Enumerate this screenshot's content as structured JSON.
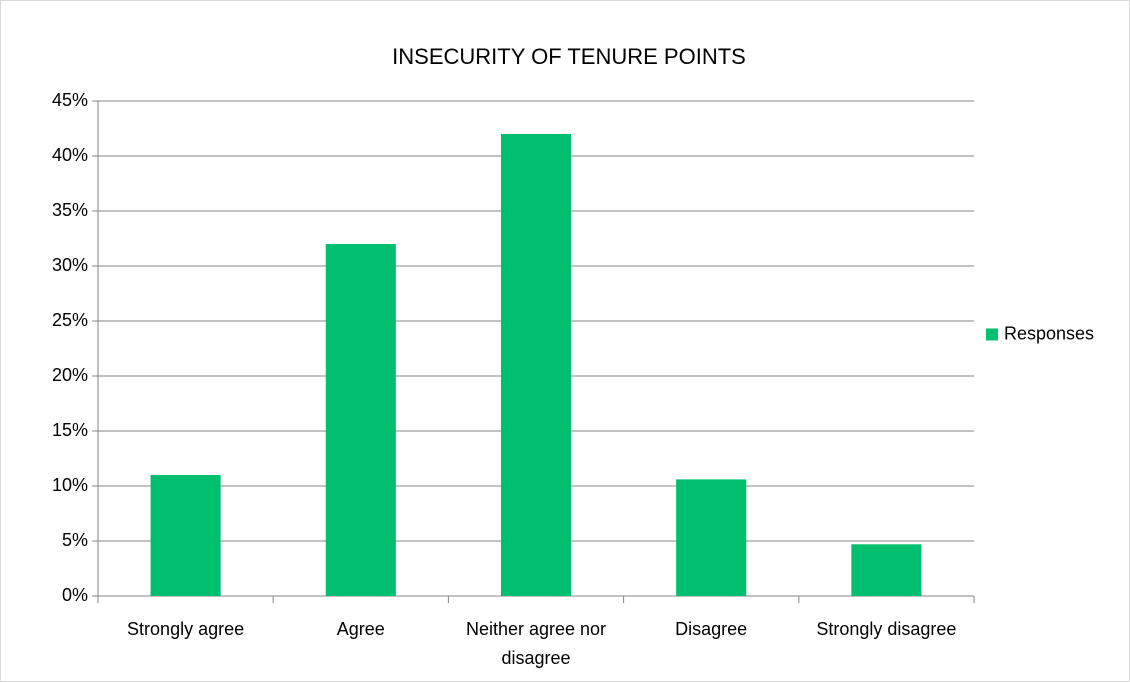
{
  "chart_data": {
    "type": "bar",
    "title": "INSECURITY OF TENURE POINTS",
    "categories": [
      "Strongly agree",
      "Agree",
      "Neither agree nor disagree",
      "Disagree",
      "Strongly disagree"
    ],
    "series": [
      {
        "name": "Responses",
        "color": "#00bf6f",
        "values": [
          11,
          32,
          42,
          10.6,
          4.7
        ]
      }
    ],
    "ylim": [
      0,
      45
    ],
    "yticks": [
      {
        "value": 0,
        "label": "0%"
      },
      {
        "value": 5,
        "label": "5%"
      },
      {
        "value": 10,
        "label": "10%"
      },
      {
        "value": 15,
        "label": "15%"
      },
      {
        "value": 20,
        "label": "20%"
      },
      {
        "value": 25,
        "label": "25%"
      },
      {
        "value": 30,
        "label": "30%"
      },
      {
        "value": 35,
        "label": "35%"
      },
      {
        "value": 40,
        "label": "40%"
      },
      {
        "value": 45,
        "label": "45%"
      }
    ],
    "grid": true,
    "legend": "right"
  }
}
